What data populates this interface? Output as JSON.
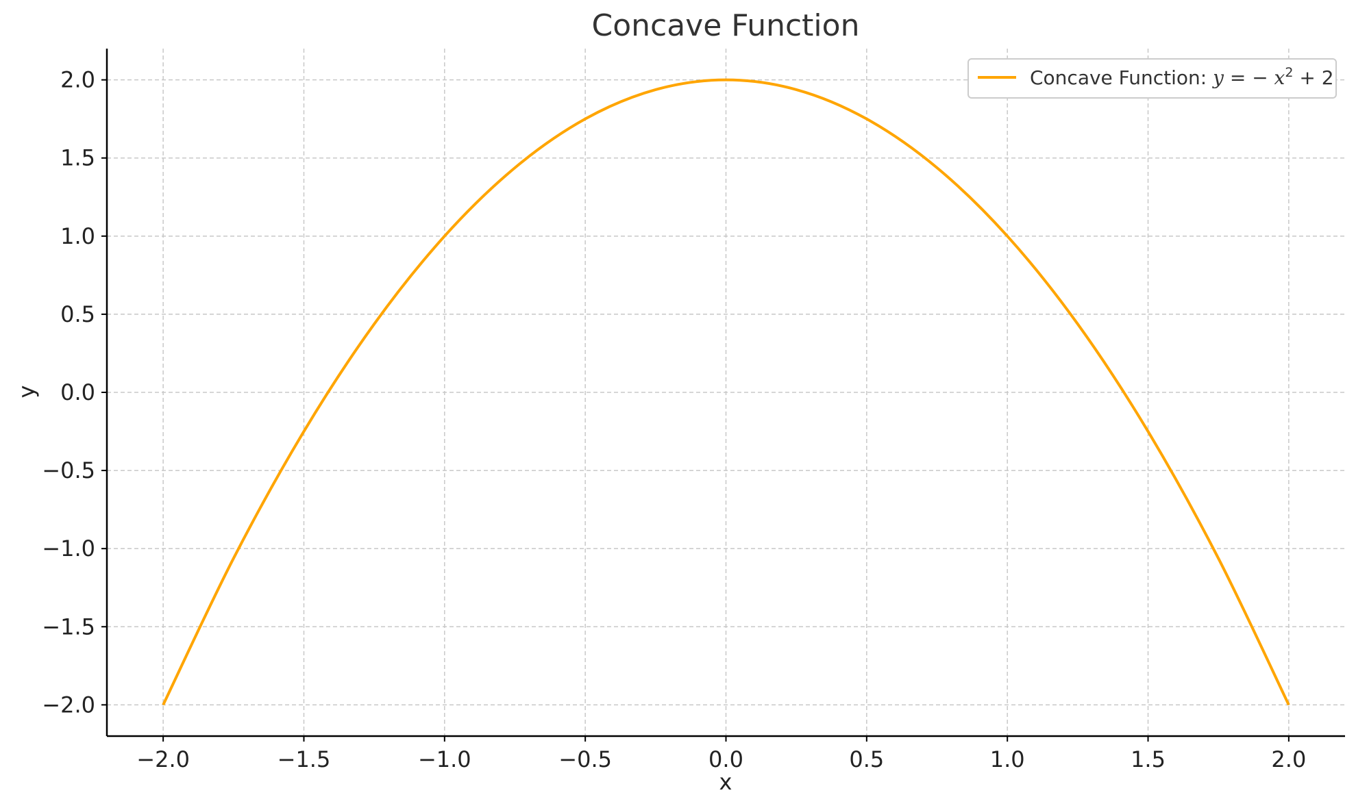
{
  "chart_data": {
    "type": "line",
    "title": "Concave Function",
    "xlabel": "x",
    "ylabel": "y",
    "xlim": [
      -2.2,
      2.2
    ],
    "ylim": [
      -2.2,
      2.2
    ],
    "x_ticks": [
      -2.0,
      -1.5,
      -1.0,
      -0.5,
      0.0,
      0.5,
      1.0,
      1.5,
      2.0
    ],
    "y_ticks": [
      -2.0,
      -1.5,
      -1.0,
      -0.5,
      0.0,
      0.5,
      1.0,
      1.5,
      2.0
    ],
    "x_tick_labels": [
      "−2.0",
      "−1.5",
      "−1.0",
      "−0.5",
      "0.0",
      "0.5",
      "1.0",
      "1.5",
      "2.0"
    ],
    "y_tick_labels": [
      "−2.0",
      "−1.5",
      "−1.0",
      "−0.5",
      "0.0",
      "0.5",
      "1.0",
      "1.5",
      "2.0"
    ],
    "grid": true,
    "legend_position": "top-right",
    "series": [
      {
        "name": "Concave Function: y = −x² + 2",
        "color": "#FFA500",
        "x": [
          -2.0,
          -1.75,
          -1.5,
          -1.25,
          -1.0,
          -0.75,
          -0.5,
          -0.25,
          0.0,
          0.25,
          0.5,
          0.75,
          1.0,
          1.25,
          1.5,
          1.75,
          2.0
        ],
        "y": [
          -2.0,
          -1.0625,
          -0.25,
          0.4375,
          1.0,
          1.4375,
          1.75,
          1.9375,
          2.0,
          1.9375,
          1.75,
          1.4375,
          1.0,
          0.4375,
          -0.25,
          -1.0625,
          -2.0
        ]
      }
    ],
    "legend": {
      "prefix": "Concave Function: ",
      "math_main": "y = − x",
      "math_sup": "2",
      "math_tail": " + 2"
    }
  }
}
